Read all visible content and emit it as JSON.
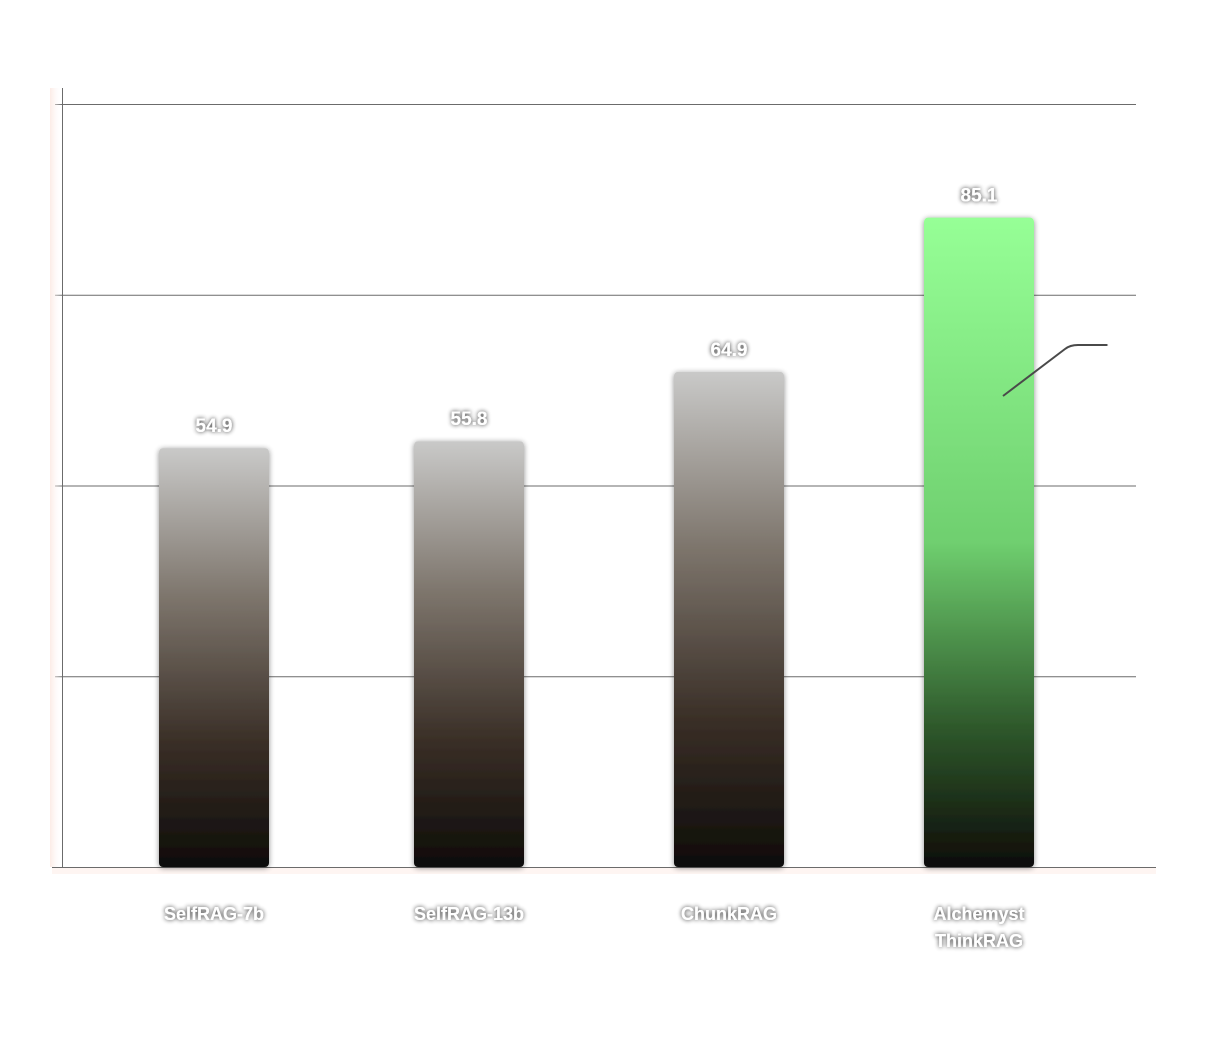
{
  "chart_data": {
    "type": "bar",
    "categories": [
      "SelfRAG-7b",
      "SelfRAG-13b",
      "ChunkRAG",
      "Alchemyst ThinkRAG"
    ],
    "category_lines": [
      [
        "SelfRAG-7b"
      ],
      [
        "SelfRAG-13b"
      ],
      [
        "ChunkRAG"
      ],
      [
        "Alchemyst",
        "ThinkRAG"
      ]
    ],
    "values": [
      54.9,
      55.8,
      64.9,
      85.1
    ],
    "value_labels": [
      "54.9",
      "55.8",
      "64.9",
      "85.1"
    ],
    "ylim": [
      0,
      100
    ],
    "grid": true,
    "highlight_index": 3,
    "colors": {
      "bar_top": "#c9c9c8",
      "bar_mid": "#7e766d",
      "bar_bottom": "#0e0c09",
      "highlight_top": "#96ff96",
      "highlight_mid": "#6fcf6f",
      "highlight_bottom": "#0e0c09",
      "grid": "#6b6b6b",
      "axis": "#6b6b6b",
      "label": "#ffffff"
    }
  }
}
